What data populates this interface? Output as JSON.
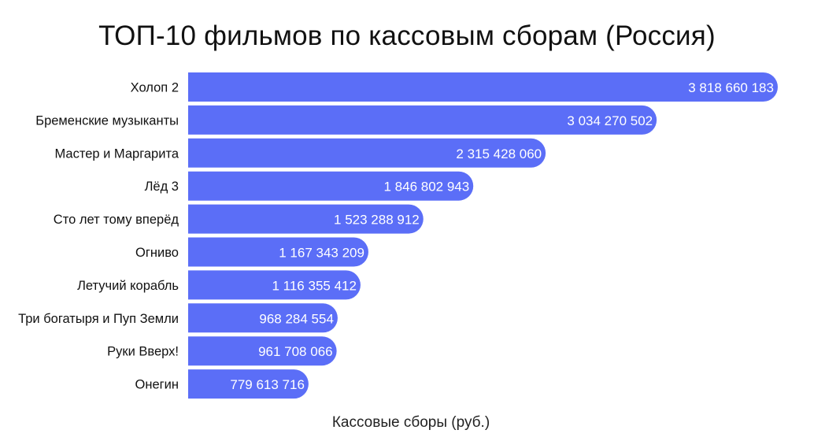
{
  "chart_data": {
    "type": "bar",
    "orientation": "horizontal",
    "title": "ТОП-10 фильмов по кассовым сборам (Россия)",
    "xlabel": "Кассовые сборы (руб.)",
    "ylabel": "",
    "bar_color": "#5b6ef7",
    "label_color": "#ffffff",
    "value_labels_inside_bar_end": true,
    "grid": false,
    "legend": "none",
    "xlim": [
      0,
      3880000000
    ],
    "categories": [
      "Холоп 2",
      "Бременские музыканты",
      "Мастер и Маргарита",
      "Лёд 3",
      "Сто лет тому вперёд",
      "Огниво",
      "Летучий корабль",
      "Три богатыря и Пуп Земли",
      "Руки Вверх!",
      "Онегин"
    ],
    "values": [
      3818660183,
      3034270502,
      2315428060,
      1846802943,
      1523288912,
      1167343209,
      1116355412,
      968284554,
      961708066,
      779613716
    ],
    "value_labels": [
      "3 818 660 183",
      "3 034 270 502",
      "2 315 428 060",
      "1 846 802 943",
      "1 523 288 912",
      "1 167 343 209",
      "1 116 355 412",
      "968 284 554",
      "961 708 066",
      "779 613 716"
    ]
  }
}
